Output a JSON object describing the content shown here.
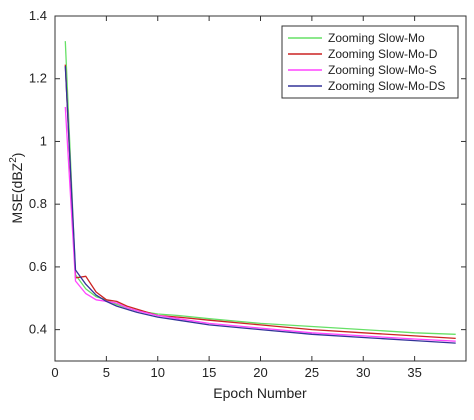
{
  "chart_data": {
    "type": "line",
    "title": "",
    "xlabel": "Epoch Number",
    "ylabel_base": "MSE(dBZ",
    "ylabel_sup": "2",
    "ylabel_close": ")",
    "xlim": [
      0,
      40
    ],
    "ylim": [
      0.3,
      1.4
    ],
    "xticks": [
      0,
      5,
      10,
      15,
      20,
      25,
      30,
      35
    ],
    "xtick_labels": [
      "0",
      "5",
      "10",
      "15",
      "20",
      "25",
      "30",
      "35"
    ],
    "yticks": [
      0.4,
      0.6,
      0.8,
      1.0,
      1.2,
      1.4
    ],
    "ytick_labels": [
      "0.4",
      "0.6",
      "0.8",
      "1",
      "1.2",
      "1.4"
    ],
    "grid": false,
    "legend_position": "top-right",
    "series": [
      {
        "name": "Zooming Slow-Mo",
        "color": "#66e066",
        "x": [
          1,
          2,
          3,
          4,
          5,
          6,
          7,
          8,
          10,
          12,
          15,
          20,
          25,
          30,
          35,
          39
        ],
        "y": [
          1.32,
          0.575,
          0.53,
          0.505,
          0.495,
          0.48,
          0.47,
          0.46,
          0.45,
          0.445,
          0.435,
          0.42,
          0.41,
          0.4,
          0.39,
          0.385
        ]
      },
      {
        "name": "Zooming Slow-Mo-D",
        "color": "#cc2222",
        "x": [
          1,
          2,
          3,
          4,
          5,
          6,
          7,
          8,
          10,
          12,
          15,
          20,
          25,
          30,
          35,
          39
        ],
        "y": [
          1.245,
          0.565,
          0.57,
          0.52,
          0.495,
          0.49,
          0.475,
          0.465,
          0.445,
          0.44,
          0.43,
          0.415,
          0.4,
          0.39,
          0.38,
          0.372
        ]
      },
      {
        "name": "Zooming Slow-Mo-S",
        "color": "#ff44ff",
        "x": [
          1,
          2,
          3,
          4,
          5,
          6,
          7,
          8,
          10,
          12,
          15,
          20,
          25,
          30,
          35,
          39
        ],
        "y": [
          1.11,
          0.555,
          0.515,
          0.495,
          0.49,
          0.485,
          0.47,
          0.46,
          0.445,
          0.435,
          0.42,
          0.405,
          0.39,
          0.38,
          0.37,
          0.363
        ]
      },
      {
        "name": "Zooming Slow-Mo-DS",
        "color": "#333399",
        "x": [
          1,
          2,
          3,
          4,
          5,
          6,
          7,
          8,
          10,
          12,
          15,
          20,
          25,
          30,
          35,
          39
        ],
        "y": [
          1.24,
          0.59,
          0.545,
          0.51,
          0.49,
          0.475,
          0.465,
          0.455,
          0.44,
          0.43,
          0.415,
          0.4,
          0.385,
          0.375,
          0.365,
          0.357
        ]
      }
    ]
  }
}
